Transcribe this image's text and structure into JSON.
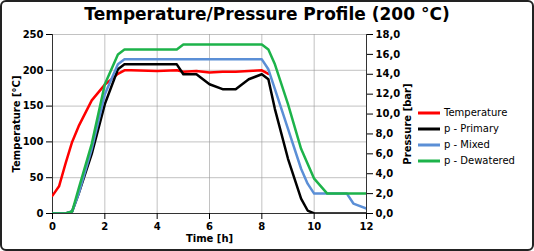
{
  "chart_data": {
    "type": "line",
    "title": "Temperature/Pressure Profile (200 °C)",
    "x_label": "Time [h]",
    "y_label": "Temperature [°C]",
    "y2_label": "Pressure [bar]",
    "x": [
      0,
      0.25,
      0.5,
      0.75,
      1,
      1.5,
      2,
      2.5,
      2.75,
      3,
      4,
      4.75,
      5,
      5.5,
      6,
      6.5,
      7,
      7.5,
      8,
      8.25,
      8.5,
      9,
      9.5,
      9.75,
      10,
      10.5,
      11,
      11.25,
      11.5,
      12
    ],
    "series": [
      {
        "name": "Temperature",
        "color": "#ff0000",
        "values": [
          25,
          38,
          70,
          100,
          122,
          158,
          180,
          195,
          200,
          200,
          199,
          200,
          198,
          199,
          197,
          198,
          198,
          199,
          200,
          195,
          null,
          null,
          null,
          null,
          null,
          null,
          null,
          null,
          null,
          null
        ]
      },
      {
        "name": "p - Primary",
        "color": "#000000",
        "axis": "y2",
        "values": [
          0,
          0,
          0,
          0.2,
          2,
          6,
          11,
          14.5,
          15,
          15,
          15,
          15,
          14,
          14,
          13,
          12.5,
          12.5,
          13.5,
          14,
          13.5,
          10.5,
          5.5,
          1.5,
          0.3,
          0,
          0,
          0,
          0,
          0,
          0
        ]
      },
      {
        "name": "p - Mixed",
        "color": "#5b8fd6",
        "axis": "y2",
        "values": [
          0,
          0,
          0,
          0.2,
          2,
          6.5,
          12,
          15,
          15.5,
          15.5,
          15.5,
          15.5,
          15.5,
          15.5,
          15.5,
          15.5,
          15.5,
          15.5,
          15.5,
          14.5,
          12.5,
          8.5,
          4.5,
          3,
          2,
          2,
          2,
          2,
          1,
          0.5
        ]
      },
      {
        "name": "p - Dewatered",
        "color": "#1db34a",
        "axis": "y2",
        "values": [
          0,
          0,
          0,
          0.2,
          2.5,
          7,
          13,
          16,
          16.5,
          16.5,
          16.5,
          16.5,
          17,
          17,
          17,
          17,
          17,
          17,
          17,
          16.5,
          15,
          11,
          6.5,
          5,
          3.5,
          2,
          2,
          2,
          2,
          2
        ]
      }
    ],
    "xlim": [
      0,
      12
    ],
    "xticks": [
      0,
      2,
      4,
      6,
      8,
      10,
      12
    ],
    "ylim": [
      0,
      250
    ],
    "yticks": [
      0,
      50,
      100,
      150,
      200,
      250
    ],
    "y2lim": [
      0,
      18
    ],
    "y2ticks": [
      {
        "value": 0,
        "label": "0,0"
      },
      {
        "value": 2,
        "label": "2,0"
      },
      {
        "value": 4,
        "label": "4,0"
      },
      {
        "value": 6,
        "label": "6,0"
      },
      {
        "value": 8,
        "label": "8,0"
      },
      {
        "value": 10,
        "label": "10,0"
      },
      {
        "value": 12,
        "label": "12,0"
      },
      {
        "value": 14,
        "label": "14,0"
      },
      {
        "value": 16,
        "label": "16,0"
      },
      {
        "value": 18,
        "label": "18,0"
      }
    ],
    "grid": true,
    "legend": "right"
  }
}
